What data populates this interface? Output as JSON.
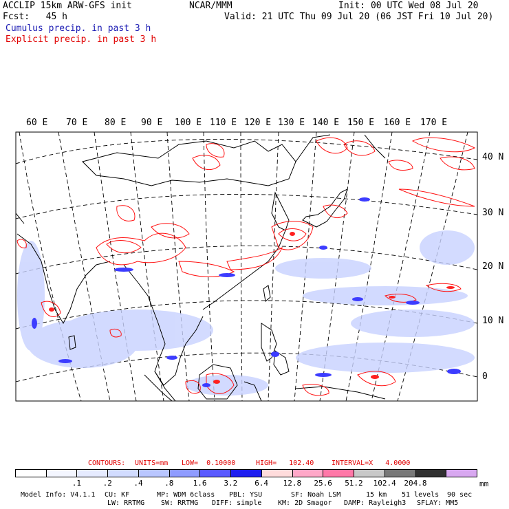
{
  "header": {
    "left_line1": "ACCLIP 15km ARW-GFS init",
    "left_line2": "Fcst:   45 h",
    "center": "NCAR/MMM",
    "init": "Init: 00 UTC Wed 08 Jul 20",
    "valid": "Valid: 21 UTC Thu 09 Jul 20 (06 JST Fri 10 Jul 20)",
    "cumulus": "Cumulus precip. in past 3 h",
    "explicit": "Explicit precip. in past 3 h"
  },
  "map": {
    "lon_labels": [
      "60 E",
      "70 E",
      "80 E",
      "90 E",
      "100 E",
      "110 E",
      "120 E",
      "130 E",
      "140 E",
      "150 E",
      "160 E",
      "170 E"
    ],
    "lat_labels": [
      "40 N",
      "30 N",
      "20 N",
      "10 N",
      "0"
    ],
    "colors": {
      "cumulus": "#3c3cff",
      "cumulus_light": "#c8d2ff",
      "explicit": "#ff1010",
      "coast": "#000000"
    }
  },
  "contours": {
    "label": "CONTOURS:",
    "units": "UNITS=mm",
    "low": "LOW=  0.10000",
    "high": "HIGH=   102.40",
    "interval": "INTERVAL=X   4.0000"
  },
  "colorbar": {
    "colors": [
      "#ffffff",
      "#f4f6ff",
      "#e6ebff",
      "#d2dcff",
      "#b9c6ff",
      "#8f9cff",
      "#5a5aff",
      "#1e1ef0",
      "#ffdcdc",
      "#ffa8c8",
      "#ff78a8",
      "#c8c8c8",
      "#787878",
      "#303030",
      "#d8a8f0"
    ],
    "labels": [
      ".1",
      ".2",
      ".4",
      ".8",
      "1.6",
      "3.2",
      "6.4",
      "12.8",
      "25.6",
      "51.2",
      "102.4",
      "204.8"
    ],
    "unit": "mm"
  },
  "footer": {
    "line1": [
      "Model Info: V4.1.1",
      "CU: KF",
      "MP: WDM 6class",
      "PBL: YSU",
      "SF: Noah LSM",
      "15 km",
      "51 levels",
      "90 sec"
    ],
    "line2": [
      "LW: RRTMG",
      "SW: RRTMG",
      "DIFF: simple",
      "KM: 2D Smagor",
      "DAMP: Rayleigh3",
      "SFLAY: MM5"
    ]
  }
}
